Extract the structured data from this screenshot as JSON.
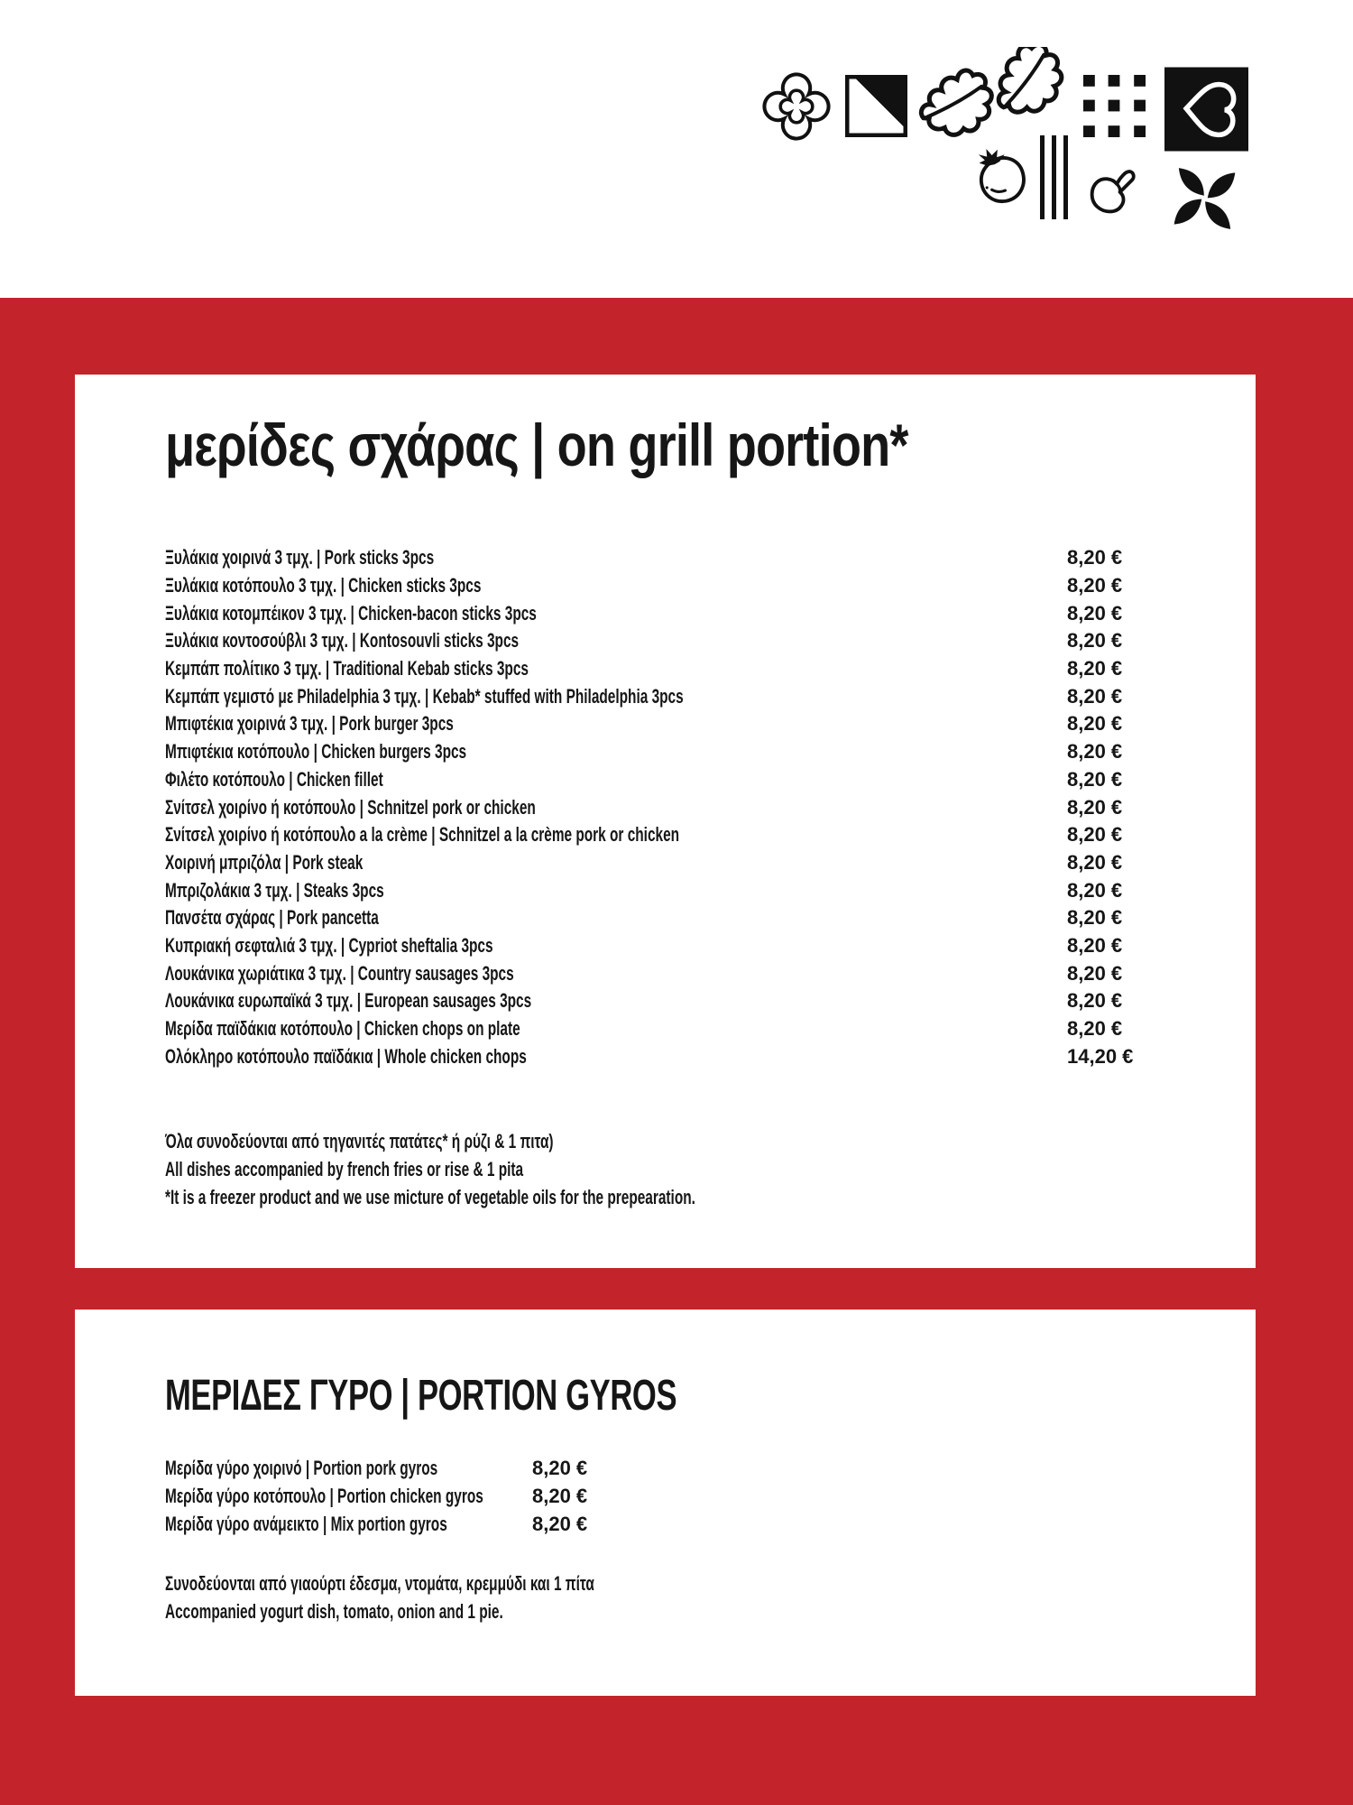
{
  "colors": {
    "background_red": "#c3242b",
    "ink": "#161616",
    "icon_black": "#111111"
  },
  "header": {
    "icons": [
      "quatrefoil-icon",
      "half-filled-square-icon",
      "oak-leaves-icon",
      "dots-grid-icon",
      "heart-square-icon",
      "tomato-icon",
      "grill-lines-icon",
      "mushroom-icon",
      "petal-pinwheel-icon"
    ]
  },
  "grill_section": {
    "title": "μερίδες σχάρας | on grill portion*",
    "items": [
      {
        "name": "Ξυλάκια χοιρινά 3 τμχ. | Pork sticks 3pcs",
        "price": "8,20 €"
      },
      {
        "name": "Ξυλάκια κοτόπουλο 3 τμχ. | Chicken sticks 3pcs",
        "price": "8,20 €"
      },
      {
        "name": "Ξυλάκια κοτομπέικον 3 τμχ. | Chicken-bacon sticks 3pcs",
        "price": "8,20 €"
      },
      {
        "name": "Ξυλάκια κοντοσούβλι 3 τμχ. | Kontosouvli sticks 3pcs",
        "price": "8,20 €"
      },
      {
        "name": "Κεμπάπ πολίτικο 3 τμχ. | Traditional Kebab sticks 3pcs",
        "price": "8,20 €"
      },
      {
        "name": "Κεμπάπ γεμιστό με Philadelphia 3 τμχ. | Kebab* stuffed with Philadelphia 3pcs",
        "price": "8,20 €"
      },
      {
        "name": "Μπιφτέκια χοιρινά 3 τμχ. | Pork burger 3pcs",
        "price": "8,20 €"
      },
      {
        "name": "Μπιφτέκια κοτόπουλο | Chicken burgers 3pcs",
        "price": "8,20 €"
      },
      {
        "name": "Φιλέτο κοτόπουλο | Chicken fillet",
        "price": "8,20 €"
      },
      {
        "name": "Σνίτσελ χοιρίνο ή κοτόπουλο | Schnitzel pork or chicken",
        "price": "8,20 €"
      },
      {
        "name": "Σνίτσελ χοιρίνο ή κοτόπουλο a la crème | Schnitzel a la crème pork or chicken",
        "price": "8,20 €"
      },
      {
        "name": "Χοιρινή μπριζόλα | Pork steak",
        "price": "8,20 €"
      },
      {
        "name": "Μπριζολάκια 3 τμχ. | Steaks 3pcs",
        "price": "8,20 €"
      },
      {
        "name": "Πανσέτα σχάρας | Pork pancetta",
        "price": "8,20 €"
      },
      {
        "name": "Κυπριακή σεφταλιά 3 τμχ. | Cypriot sheftalia 3pcs",
        "price": "8,20 €"
      },
      {
        "name": "Λουκάνικα χωριάτικα 3 τμχ. | Country sausages 3pcs",
        "price": "8,20 €"
      },
      {
        "name": "Λουκάνικα ευρωπαϊκά 3 τμχ. | European sausages 3pcs",
        "price": "8,20 €"
      },
      {
        "name": "Μερίδα παϊδάκια κοτόπουλο | Chicken chops on plate",
        "price": "8,20 €"
      },
      {
        "name": "Ολόκληρο κοτόπουλο παϊδάκια | Whole chicken chops",
        "price": "14,20 €"
      }
    ],
    "notes": [
      "Όλα συνοδεύονται από τηγανιτές πατάτες* ή ρύζι & 1 πιτα)",
      "All dishes accompanied by french fries or rise & 1 pita",
      "*It is a freezer product and we use micture of vegetable oils for the prepearation."
    ]
  },
  "gyros_section": {
    "title": "ΜΕΡΙΔΕΣ ΓΥΡΟ | PORTION GYROS",
    "items": [
      {
        "name": "Μερίδα γύρο χοιρινό | Portion pork gyros",
        "price": "8,20 €"
      },
      {
        "name": "Μερίδα γύρο κοτόπουλο | Portion chicken gyros",
        "price": "8,20 €"
      },
      {
        "name": "Μερίδα γύρο ανάμεικτο | Mix portion gyros",
        "price": "8,20 €"
      }
    ],
    "notes": [
      "Συνοδεύονται από γιαούρτι έδεσμα, ντομάτα, κρεμμύδι και 1 πίτα",
      "Accompanied yogurt dish, tomato, onion and 1 pie."
    ]
  }
}
